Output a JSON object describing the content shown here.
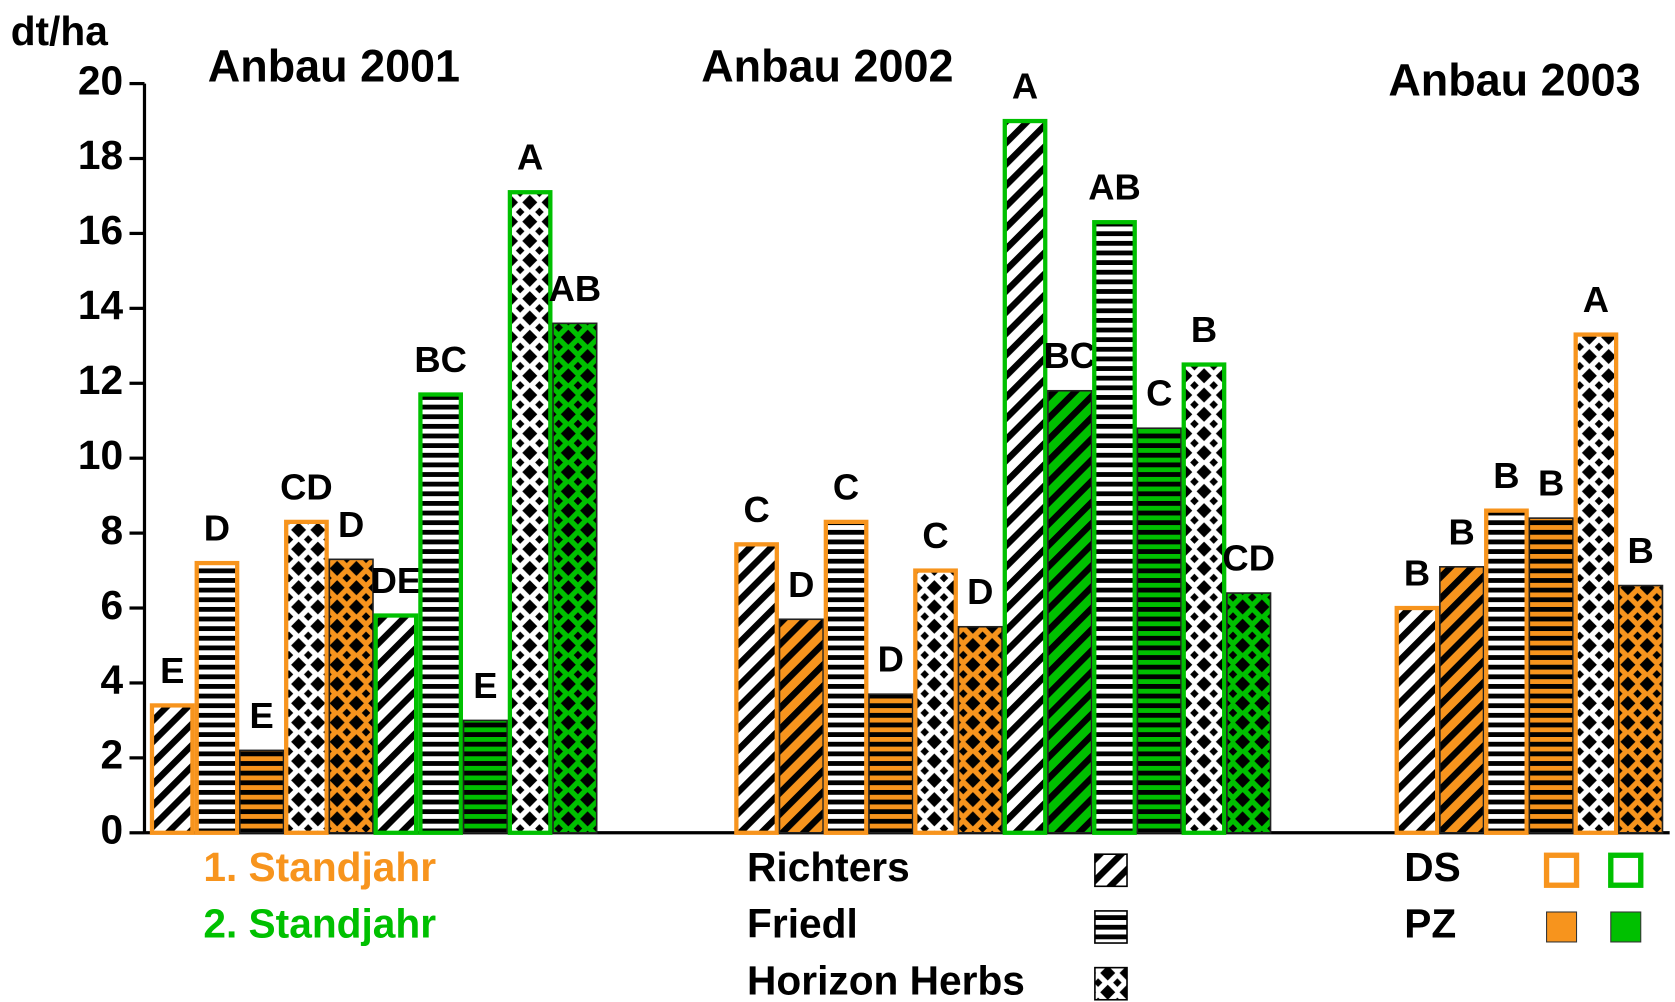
{
  "chart_data": {
    "type": "bar",
    "y_label": "dt/ha",
    "ylim": [
      0,
      20
    ],
    "yticks": [
      0,
      2,
      4,
      6,
      8,
      10,
      12,
      14,
      16,
      18,
      20
    ],
    "standjahr": [
      {
        "name": "1. Standjahr",
        "color": "#f7941d"
      },
      {
        "name": "2. Standjahr",
        "color": "#00c000"
      }
    ],
    "varieties": [
      {
        "name": "Richters",
        "pattern": "diagonal"
      },
      {
        "name": "Friedl",
        "pattern": "horizontal"
      },
      {
        "name": "Horizon Herbs",
        "pattern": "checker"
      }
    ],
    "treatments": [
      {
        "name": "DS",
        "filled": false
      },
      {
        "name": "PZ",
        "filled": true
      }
    ],
    "groups": [
      {
        "name": "Anbau 2001",
        "values": [
          3.4,
          7.2,
          2.2,
          8.3,
          7.3,
          5.8,
          11.7,
          3.0,
          17.1,
          13.6
        ],
        "letters": [
          "E",
          "D",
          "E",
          "CD",
          "D",
          "DE",
          "BC",
          "E",
          "A",
          "AB"
        ],
        "variety": [
          "Richters",
          "Friedl",
          "Friedl",
          "Horizon Herbs",
          "Horizon Herbs",
          "Richters",
          "Friedl",
          "Friedl",
          "Horizon Herbs",
          "Horizon Herbs"
        ],
        "treatment": [
          "DS",
          "DS",
          "PZ",
          "DS",
          "PZ",
          "DS",
          "DS",
          "PZ",
          "DS",
          "PZ"
        ],
        "standjahr": [
          "1. Standjahr",
          "1. Standjahr",
          "1. Standjahr",
          "1. Standjahr",
          "1. Standjahr",
          "2. Standjahr",
          "2. Standjahr",
          "2. Standjahr",
          "2. Standjahr",
          "2. Standjahr"
        ]
      },
      {
        "name": "Anbau 2002",
        "values": [
          7.7,
          5.7,
          8.3,
          3.7,
          7.0,
          5.5,
          19.0,
          11.8,
          16.3,
          10.8,
          12.5,
          6.4
        ],
        "letters": [
          "C",
          "D",
          "C",
          "D",
          "C",
          "D",
          "A",
          "BC",
          "AB",
          "C",
          "B",
          "CD"
        ],
        "variety": [
          "Richters",
          "Richters",
          "Friedl",
          "Friedl",
          "Horizon Herbs",
          "Horizon Herbs",
          "Richters",
          "Richters",
          "Friedl",
          "Friedl",
          "Horizon Herbs",
          "Horizon Herbs"
        ],
        "treatment": [
          "DS",
          "PZ",
          "DS",
          "PZ",
          "DS",
          "PZ",
          "DS",
          "PZ",
          "DS",
          "PZ",
          "DS",
          "PZ"
        ],
        "standjahr": [
          "1. Standjahr",
          "1. Standjahr",
          "1. Standjahr",
          "1. Standjahr",
          "1. Standjahr",
          "1. Standjahr",
          "2. Standjahr",
          "2. Standjahr",
          "2. Standjahr",
          "2. Standjahr",
          "2. Standjahr",
          "2. Standjahr"
        ]
      },
      {
        "name": "Anbau 2003",
        "values": [
          6.0,
          7.1,
          8.6,
          8.4,
          13.3,
          6.6
        ],
        "letters": [
          "B",
          "B",
          "B",
          "B",
          "A",
          "B"
        ],
        "variety": [
          "Richters",
          "Richters",
          "Friedl",
          "Friedl",
          "Horizon Herbs",
          "Horizon Herbs"
        ],
        "treatment": [
          "DS",
          "PZ",
          "DS",
          "PZ",
          "DS",
          "PZ"
        ],
        "standjahr": [
          "1. Standjahr",
          "1. Standjahr",
          "1. Standjahr",
          "1. Standjahr",
          "1. Standjahr",
          "1. Standjahr"
        ]
      }
    ]
  }
}
